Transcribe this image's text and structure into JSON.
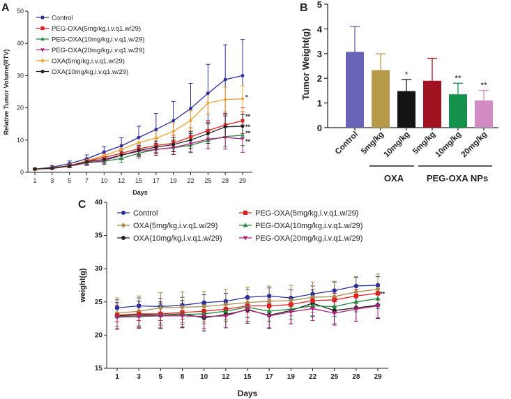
{
  "figure": {
    "panels": [
      "A",
      "B",
      "C"
    ]
  },
  "chart_data": [
    {
      "panel": "A",
      "type": "line",
      "title": "",
      "xlabel": "Days",
      "ylabel": "Relative Tumor Volume(RTV)",
      "ylim": [
        0,
        50
      ],
      "yticks": [
        0,
        10,
        20,
        30,
        40,
        50
      ],
      "categories": [
        "1",
        "3",
        "5",
        "7",
        "10",
        "12",
        "15",
        "17",
        "19",
        "22",
        "25",
        "28",
        "29"
      ],
      "legend": "top-left",
      "series": [
        {
          "name": "Control",
          "color": "#2b2f9e",
          "marker": "circle",
          "values": [
            1.0,
            1.6,
            2.7,
            4.2,
            6.3,
            8.2,
            10.8,
            13.3,
            16.0,
            19.8,
            24.5,
            28.8,
            30.0
          ],
          "errors": [
            0.3,
            0.5,
            0.8,
            1.2,
            1.6,
            2.5,
            3.5,
            5.0,
            6.0,
            7.8,
            9.0,
            10.8,
            11.2
          ]
        },
        {
          "name": "PEG-OXA(5mg/kg,i.v.q1.w/29)",
          "color": "#e02020",
          "marker": "square",
          "values": [
            1.0,
            1.3,
            2.1,
            3.5,
            4.6,
            5.9,
            7.3,
            8.3,
            9.0,
            11.0,
            12.9,
            14.7,
            16.0
          ],
          "errors": [
            0.2,
            0.3,
            0.6,
            0.9,
            1.2,
            1.5,
            1.8,
            2.2,
            2.5,
            2.8,
            3.2,
            3.6,
            4.0
          ]
        },
        {
          "name": "PEG-OXA(10mg/kg,i.v.q1.w/29)",
          "color": "#1f8a3a",
          "marker": "triangle-up",
          "values": [
            1.0,
            1.2,
            1.9,
            2.9,
            3.4,
            4.3,
            5.9,
            7.1,
            7.6,
            8.4,
            9.9,
            11.1,
            11.5
          ],
          "errors": [
            0.2,
            0.3,
            0.5,
            0.8,
            1.0,
            1.2,
            1.5,
            1.8,
            2.0,
            2.3,
            2.6,
            3.0,
            3.2
          ]
        },
        {
          "name": "PEG-OXA(20mg/kg,i.v.q1.w/29)",
          "color": "#b0207e",
          "marker": "triangle-down",
          "values": [
            1.0,
            1.2,
            1.9,
            3.0,
            3.6,
            5.3,
            6.5,
            7.1,
            7.7,
            8.9,
            10.3,
            10.8,
            10.4
          ],
          "errors": [
            0.2,
            0.3,
            0.5,
            0.8,
            1.0,
            1.3,
            1.6,
            1.9,
            2.2,
            2.6,
            3.0,
            3.6,
            4.2
          ]
        },
        {
          "name": "OXA(5mg/kg,i.v.q1.w/29)",
          "color": "#f0a030",
          "marker": "diamond",
          "values": [
            1.0,
            1.4,
            2.1,
            3.6,
            5.2,
            7.1,
            9.2,
            10.6,
            12.7,
            16.1,
            21.5,
            22.6,
            22.8
          ],
          "errors": [
            0.2,
            0.3,
            0.6,
            0.9,
            1.2,
            1.5,
            1.8,
            2.2,
            2.6,
            3.0,
            3.4,
            3.8,
            4.0
          ]
        },
        {
          "name": "OXA(10mg/kg,i.v.q1.w/29)",
          "color": "#222222",
          "marker": "circle",
          "values": [
            1.0,
            1.3,
            2.0,
            3.3,
            4.0,
            5.3,
            6.8,
            7.8,
            8.6,
            10.0,
            12.0,
            14.1,
            14.3
          ],
          "errors": [
            0.2,
            0.3,
            0.5,
            0.8,
            1.0,
            1.3,
            1.6,
            1.9,
            2.2,
            2.6,
            3.0,
            3.4,
            3.6
          ]
        }
      ],
      "significance": [
        {
          "series": "OXA(5mg/kg,i.v.q1.w/29)",
          "label": "*"
        },
        {
          "series": "PEG-OXA(5mg/kg,i.v.q1.w/29)",
          "label": "**"
        },
        {
          "series": "OXA(10mg/kg,i.v.q1.w/29)",
          "label": "**"
        },
        {
          "series": "PEG-OXA(10mg/kg,i.v.q1.w/29)",
          "label": "**"
        },
        {
          "series": "PEG-OXA(20mg/kg,i.v.q1.w/29)",
          "label": "**"
        }
      ]
    },
    {
      "panel": "B",
      "type": "bar",
      "title": "",
      "xlabel": "",
      "ylabel": "Tumor Weight(g)",
      "ylim": [
        0,
        5
      ],
      "yticks": [
        0,
        1,
        2,
        3,
        4,
        5
      ],
      "categories": [
        "Control",
        "5mg/kg",
        "10mg/kg",
        "5mg/kg",
        "10mg/kg",
        "20mg/kg"
      ],
      "values": [
        3.07,
        2.33,
        1.48,
        1.9,
        1.35,
        1.1
      ],
      "errors": [
        1.03,
        0.66,
        0.47,
        0.91,
        0.45,
        0.41
      ],
      "colors": [
        "#6a64b8",
        "#b59a4a",
        "#141414",
        "#a01422",
        "#14914a",
        "#d28cc3"
      ],
      "significance": [
        "",
        "",
        "*",
        "",
        "**",
        "**"
      ],
      "groups": [
        {
          "label": "OXA",
          "categories": [
            "5mg/kg",
            "10mg/kg"
          ]
        },
        {
          "label": "PEG-OXA NPs",
          "categories": [
            "5mg/kg",
            "10mg/kg",
            "20mg/kg"
          ]
        }
      ]
    },
    {
      "panel": "C",
      "type": "line",
      "title": "",
      "xlabel": "Days",
      "ylabel": "weight(g)",
      "ylim": [
        15,
        40
      ],
      "yticks": [
        15,
        20,
        25,
        30,
        35,
        40
      ],
      "categories": [
        "1",
        "3",
        "5",
        "8",
        "10",
        "12",
        "15",
        "17",
        "19",
        "22",
        "25",
        "28",
        "29"
      ],
      "legend": "top",
      "series": [
        {
          "name": "Control",
          "color": "#2b2f9e",
          "marker": "circle",
          "values": [
            24.1,
            24.4,
            24.3,
            24.5,
            24.9,
            25.1,
            25.7,
            25.9,
            25.6,
            26.2,
            26.7,
            27.4,
            27.5
          ],
          "errors": [
            1.2,
            1.2,
            1.2,
            1.2,
            1.2,
            1.2,
            1.2,
            1.2,
            1.2,
            1.2,
            1.3,
            1.3,
            1.3
          ]
        },
        {
          "name": "OXA(5mg/kg,i.v.q1.w/29)",
          "color": "#a58a4a",
          "marker": "diamond",
          "values": [
            23.3,
            23.6,
            24.1,
            24.2,
            24.3,
            24.6,
            24.9,
            25.1,
            25.2,
            25.7,
            25.8,
            26.5,
            26.9
          ],
          "errors": [
            2.3,
            2.3,
            2.3,
            2.3,
            2.3,
            2.3,
            2.3,
            2.3,
            2.3,
            2.3,
            2.3,
            2.3,
            2.3
          ]
        },
        {
          "name": "OXA(10mg/kg,i.v.q1.w/29)",
          "color": "#222222",
          "marker": "circle",
          "values": [
            22.9,
            23.1,
            23.0,
            23.2,
            22.6,
            23.1,
            23.8,
            23.0,
            23.7,
            24.8,
            23.7,
            24.1,
            24.5
          ],
          "errors": [
            2.0,
            2.0,
            2.0,
            2.0,
            2.0,
            2.0,
            2.0,
            2.0,
            2.0,
            2.0,
            2.0,
            2.0,
            2.0
          ]
        },
        {
          "name": "PEG-OXA(5mg/kg,i.v.q1.w/29)",
          "color": "#e02020",
          "marker": "square",
          "values": [
            23.0,
            23.2,
            23.2,
            23.4,
            23.6,
            23.9,
            24.4,
            24.4,
            24.6,
            25.2,
            25.3,
            25.9,
            26.3
          ],
          "errors": [
            1.0,
            1.0,
            1.0,
            1.0,
            1.0,
            1.0,
            1.0,
            1.0,
            1.0,
            1.0,
            1.0,
            1.0,
            1.0
          ]
        },
        {
          "name": "PEG-OXA(10mg/kg,i.v.q1.w/29)",
          "color": "#1f8a3a",
          "marker": "triangle-up",
          "values": [
            22.8,
            22.9,
            23.0,
            23.1,
            23.2,
            23.6,
            24.2,
            23.6,
            23.9,
            24.4,
            24.3,
            25.0,
            25.5
          ],
          "errors": [
            1.5,
            1.5,
            1.5,
            1.5,
            1.5,
            1.5,
            1.5,
            1.5,
            1.5,
            1.5,
            1.5,
            1.5,
            1.5
          ]
        },
        {
          "name": "PEG-OXA(20mg/kg,i.v.q1.w/29)",
          "color": "#b0207e",
          "marker": "triangle-down",
          "values": [
            22.7,
            22.8,
            22.9,
            22.9,
            22.8,
            22.9,
            23.9,
            22.9,
            23.5,
            24.0,
            23.3,
            23.9,
            24.4
          ],
          "errors": [
            1.8,
            1.8,
            1.8,
            1.8,
            1.8,
            1.8,
            1.8,
            1.8,
            1.8,
            1.8,
            1.8,
            1.8,
            1.8
          ]
        }
      ],
      "significance": [
        {
          "label": "**"
        }
      ]
    }
  ]
}
